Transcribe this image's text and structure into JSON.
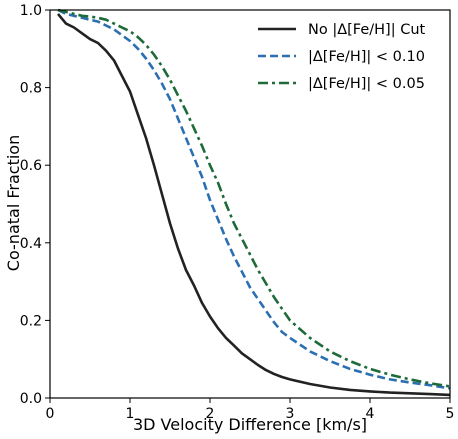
{
  "chart_data": {
    "type": "line",
    "title": "",
    "xlabel": "3D Velocity Difference [km/s]",
    "ylabel": "Co-natal Fraction",
    "xlim": [
      0,
      5
    ],
    "ylim": [
      0,
      1
    ],
    "xticks": [
      "0",
      "1",
      "2",
      "3",
      "4",
      "5"
    ],
    "yticks": [
      "0.0",
      "0.2",
      "0.4",
      "0.6",
      "0.8",
      "1.0"
    ],
    "grid": false,
    "legend_position": "top-right",
    "series": [
      {
        "name": "No |Δ[Fe/H]| Cut",
        "color": "#222222",
        "style": "solid",
        "x": [
          0.1,
          0.2,
          0.3,
          0.4,
          0.5,
          0.6,
          0.7,
          0.8,
          0.9,
          1.0,
          1.1,
          1.2,
          1.3,
          1.4,
          1.5,
          1.6,
          1.7,
          1.8,
          1.9,
          2.0,
          2.1,
          2.2,
          2.3,
          2.4,
          2.5,
          2.6,
          2.7,
          2.8,
          2.9,
          3.0,
          3.25,
          3.5,
          3.75,
          4.0,
          4.25,
          4.5,
          4.75,
          5.0
        ],
        "y": [
          0.99,
          0.965,
          0.955,
          0.94,
          0.925,
          0.915,
          0.895,
          0.87,
          0.83,
          0.79,
          0.73,
          0.67,
          0.6,
          0.525,
          0.45,
          0.385,
          0.33,
          0.29,
          0.245,
          0.21,
          0.18,
          0.155,
          0.135,
          0.115,
          0.1,
          0.085,
          0.072,
          0.062,
          0.054,
          0.048,
          0.036,
          0.027,
          0.021,
          0.017,
          0.014,
          0.012,
          0.01,
          0.008
        ]
      },
      {
        "name": "|Δ[Fe/H]| < 0.10",
        "color": "#2b6fb3",
        "style": "dashed",
        "x": [
          0.1,
          0.2,
          0.3,
          0.4,
          0.5,
          0.6,
          0.7,
          0.8,
          0.9,
          1.0,
          1.1,
          1.2,
          1.3,
          1.4,
          1.5,
          1.6,
          1.7,
          1.8,
          1.9,
          2.0,
          2.1,
          2.2,
          2.3,
          2.4,
          2.5,
          2.6,
          2.7,
          2.8,
          2.9,
          3.0,
          3.25,
          3.5,
          3.75,
          4.0,
          4.25,
          4.5,
          4.75,
          5.0
        ],
        "y": [
          1.0,
          0.99,
          0.985,
          0.98,
          0.975,
          0.97,
          0.96,
          0.95,
          0.935,
          0.92,
          0.9,
          0.875,
          0.845,
          0.81,
          0.77,
          0.72,
          0.67,
          0.62,
          0.57,
          0.51,
          0.46,
          0.41,
          0.365,
          0.325,
          0.285,
          0.255,
          0.225,
          0.195,
          0.17,
          0.155,
          0.12,
          0.095,
          0.075,
          0.06,
          0.048,
          0.04,
          0.033,
          0.025
        ]
      },
      {
        "name": "|Δ[Fe/H]| < 0.05",
        "color": "#1e6b3a",
        "style": "dashdot",
        "x": [
          0.1,
          0.2,
          0.3,
          0.4,
          0.5,
          0.6,
          0.7,
          0.8,
          0.9,
          1.0,
          1.1,
          1.2,
          1.3,
          1.4,
          1.5,
          1.6,
          1.7,
          1.8,
          1.9,
          2.0,
          2.1,
          2.2,
          2.3,
          2.4,
          2.5,
          2.6,
          2.7,
          2.8,
          2.9,
          3.0,
          3.25,
          3.5,
          3.75,
          4.0,
          4.25,
          4.5,
          4.75,
          5.0
        ],
        "y": [
          1.0,
          0.995,
          0.99,
          0.985,
          0.983,
          0.98,
          0.975,
          0.965,
          0.955,
          0.945,
          0.93,
          0.91,
          0.885,
          0.855,
          0.82,
          0.78,
          0.74,
          0.695,
          0.65,
          0.6,
          0.555,
          0.5,
          0.45,
          0.41,
          0.37,
          0.33,
          0.295,
          0.26,
          0.23,
          0.2,
          0.155,
          0.12,
          0.095,
          0.075,
          0.06,
          0.048,
          0.038,
          0.03
        ]
      }
    ]
  }
}
